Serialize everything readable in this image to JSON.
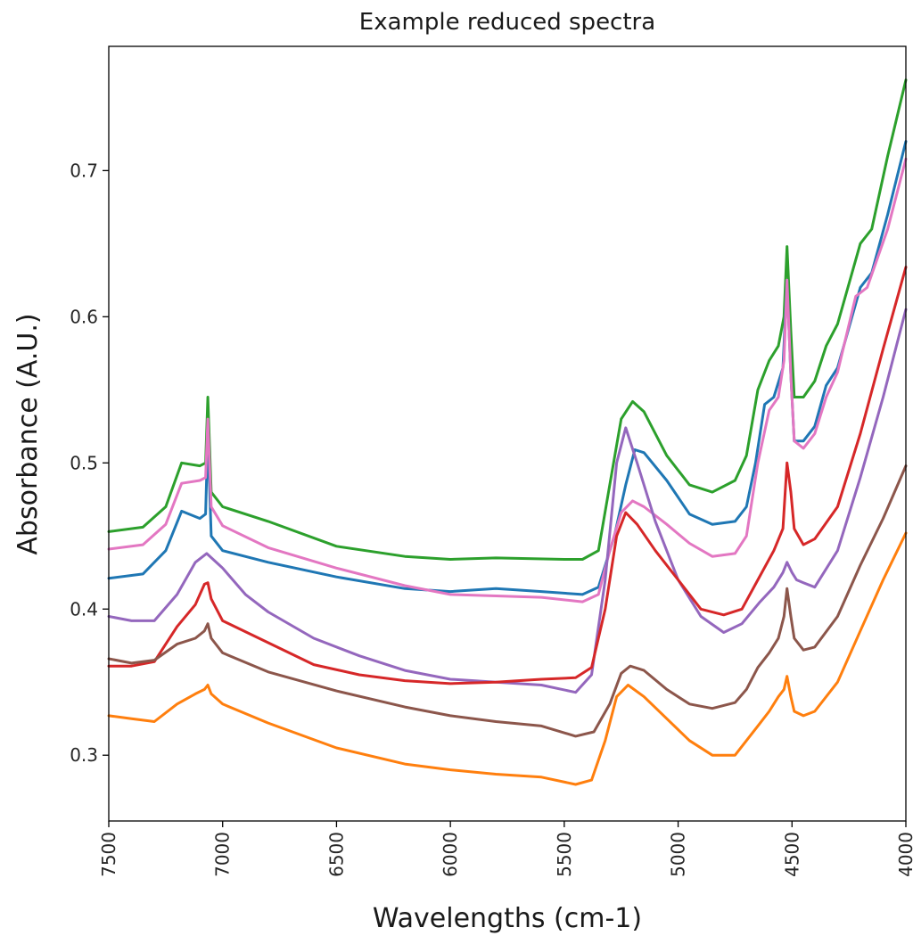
{
  "chart_data": {
    "type": "line",
    "title": "Example reduced spectra",
    "xlabel": "Wavelengths (cm-1)",
    "ylabel": "Absorbance (A.U.)",
    "xlim": [
      7500,
      4000
    ],
    "ylim": [
      0.255,
      0.785
    ],
    "x_inverted": true,
    "xticks": [
      7500,
      7000,
      6500,
      6000,
      5500,
      5000,
      4500,
      4000
    ],
    "yticks": [
      0.3,
      0.4,
      0.5,
      0.6,
      0.7
    ],
    "grid": false,
    "series": [
      {
        "color": "#2ca02c",
        "points": [
          [
            7500,
            0.453
          ],
          [
            7350,
            0.456
          ],
          [
            7250,
            0.47
          ],
          [
            7180,
            0.5
          ],
          [
            7100,
            0.498
          ],
          [
            7075,
            0.5
          ],
          [
            7065,
            0.545
          ],
          [
            7050,
            0.48
          ],
          [
            7000,
            0.47
          ],
          [
            6800,
            0.46
          ],
          [
            6500,
            0.443
          ],
          [
            6200,
            0.436
          ],
          [
            6000,
            0.434
          ],
          [
            5800,
            0.435
          ],
          [
            5500,
            0.434
          ],
          [
            5420,
            0.434
          ],
          [
            5350,
            0.44
          ],
          [
            5300,
            0.485
          ],
          [
            5250,
            0.53
          ],
          [
            5200,
            0.542
          ],
          [
            5150,
            0.535
          ],
          [
            5050,
            0.505
          ],
          [
            4950,
            0.485
          ],
          [
            4850,
            0.48
          ],
          [
            4750,
            0.488
          ],
          [
            4700,
            0.505
          ],
          [
            4650,
            0.55
          ],
          [
            4600,
            0.57
          ],
          [
            4560,
            0.58
          ],
          [
            4535,
            0.6
          ],
          [
            4522,
            0.648
          ],
          [
            4505,
            0.59
          ],
          [
            4490,
            0.545
          ],
          [
            4450,
            0.545
          ],
          [
            4400,
            0.556
          ],
          [
            4350,
            0.58
          ],
          [
            4300,
            0.595
          ],
          [
            4200,
            0.65
          ],
          [
            4150,
            0.66
          ],
          [
            4080,
            0.71
          ],
          [
            4000,
            0.762
          ]
        ]
      },
      {
        "color": "#1f77b4",
        "points": [
          [
            7500,
            0.421
          ],
          [
            7350,
            0.424
          ],
          [
            7250,
            0.44
          ],
          [
            7180,
            0.467
          ],
          [
            7100,
            0.462
          ],
          [
            7075,
            0.465
          ],
          [
            7065,
            0.52
          ],
          [
            7050,
            0.45
          ],
          [
            7000,
            0.44
          ],
          [
            6800,
            0.432
          ],
          [
            6500,
            0.422
          ],
          [
            6200,
            0.414
          ],
          [
            6000,
            0.412
          ],
          [
            5800,
            0.414
          ],
          [
            5600,
            0.412
          ],
          [
            5420,
            0.41
          ],
          [
            5350,
            0.415
          ],
          [
            5280,
            0.45
          ],
          [
            5230,
            0.485
          ],
          [
            5190,
            0.509
          ],
          [
            5150,
            0.507
          ],
          [
            5050,
            0.488
          ],
          [
            4950,
            0.465
          ],
          [
            4850,
            0.458
          ],
          [
            4750,
            0.46
          ],
          [
            4700,
            0.47
          ],
          [
            4660,
            0.5
          ],
          [
            4620,
            0.54
          ],
          [
            4580,
            0.545
          ],
          [
            4540,
            0.565
          ],
          [
            4522,
            0.625
          ],
          [
            4505,
            0.56
          ],
          [
            4490,
            0.515
          ],
          [
            4450,
            0.515
          ],
          [
            4400,
            0.525
          ],
          [
            4350,
            0.553
          ],
          [
            4300,
            0.565
          ],
          [
            4200,
            0.62
          ],
          [
            4150,
            0.63
          ],
          [
            4080,
            0.67
          ],
          [
            4000,
            0.72
          ]
        ]
      },
      {
        "color": "#e377c2",
        "points": [
          [
            7500,
            0.441
          ],
          [
            7350,
            0.444
          ],
          [
            7250,
            0.458
          ],
          [
            7180,
            0.486
          ],
          [
            7100,
            0.488
          ],
          [
            7075,
            0.49
          ],
          [
            7065,
            0.53
          ],
          [
            7050,
            0.47
          ],
          [
            7000,
            0.457
          ],
          [
            6800,
            0.442
          ],
          [
            6500,
            0.428
          ],
          [
            6200,
            0.416
          ],
          [
            6000,
            0.41
          ],
          [
            5800,
            0.409
          ],
          [
            5600,
            0.408
          ],
          [
            5420,
            0.405
          ],
          [
            5350,
            0.41
          ],
          [
            5300,
            0.44
          ],
          [
            5250,
            0.466
          ],
          [
            5200,
            0.474
          ],
          [
            5150,
            0.47
          ],
          [
            5050,
            0.458
          ],
          [
            4950,
            0.445
          ],
          [
            4850,
            0.436
          ],
          [
            4750,
            0.438
          ],
          [
            4700,
            0.45
          ],
          [
            4650,
            0.5
          ],
          [
            4600,
            0.536
          ],
          [
            4560,
            0.545
          ],
          [
            4535,
            0.57
          ],
          [
            4522,
            0.625
          ],
          [
            4505,
            0.56
          ],
          [
            4490,
            0.515
          ],
          [
            4450,
            0.51
          ],
          [
            4400,
            0.52
          ],
          [
            4350,
            0.545
          ],
          [
            4300,
            0.562
          ],
          [
            4220,
            0.614
          ],
          [
            4170,
            0.62
          ],
          [
            4080,
            0.66
          ],
          [
            4000,
            0.708
          ]
        ]
      },
      {
        "color": "#9467bd",
        "points": [
          [
            7500,
            0.395
          ],
          [
            7400,
            0.392
          ],
          [
            7300,
            0.392
          ],
          [
            7200,
            0.41
          ],
          [
            7120,
            0.432
          ],
          [
            7070,
            0.438
          ],
          [
            7000,
            0.428
          ],
          [
            6900,
            0.41
          ],
          [
            6800,
            0.398
          ],
          [
            6600,
            0.38
          ],
          [
            6400,
            0.368
          ],
          [
            6200,
            0.358
          ],
          [
            6000,
            0.352
          ],
          [
            5800,
            0.35
          ],
          [
            5600,
            0.348
          ],
          [
            5450,
            0.343
          ],
          [
            5380,
            0.355
          ],
          [
            5320,
            0.42
          ],
          [
            5270,
            0.5
          ],
          [
            5230,
            0.524
          ],
          [
            5180,
            0.5
          ],
          [
            5100,
            0.46
          ],
          [
            5000,
            0.42
          ],
          [
            4900,
            0.395
          ],
          [
            4800,
            0.384
          ],
          [
            4720,
            0.39
          ],
          [
            4640,
            0.405
          ],
          [
            4580,
            0.415
          ],
          [
            4540,
            0.425
          ],
          [
            4522,
            0.432
          ],
          [
            4500,
            0.425
          ],
          [
            4480,
            0.42
          ],
          [
            4450,
            0.418
          ],
          [
            4400,
            0.415
          ],
          [
            4300,
            0.44
          ],
          [
            4200,
            0.49
          ],
          [
            4100,
            0.545
          ],
          [
            4000,
            0.605
          ]
        ]
      },
      {
        "color": "#d62728",
        "points": [
          [
            7500,
            0.361
          ],
          [
            7400,
            0.361
          ],
          [
            7300,
            0.364
          ],
          [
            7200,
            0.388
          ],
          [
            7120,
            0.403
          ],
          [
            7080,
            0.417
          ],
          [
            7065,
            0.418
          ],
          [
            7050,
            0.407
          ],
          [
            7000,
            0.392
          ],
          [
            6800,
            0.377
          ],
          [
            6600,
            0.362
          ],
          [
            6400,
            0.355
          ],
          [
            6200,
            0.351
          ],
          [
            6000,
            0.349
          ],
          [
            5800,
            0.35
          ],
          [
            5600,
            0.352
          ],
          [
            5450,
            0.353
          ],
          [
            5380,
            0.36
          ],
          [
            5320,
            0.4
          ],
          [
            5270,
            0.45
          ],
          [
            5230,
            0.466
          ],
          [
            5180,
            0.458
          ],
          [
            5100,
            0.44
          ],
          [
            5000,
            0.42
          ],
          [
            4900,
            0.4
          ],
          [
            4800,
            0.396
          ],
          [
            4720,
            0.4
          ],
          [
            4650,
            0.42
          ],
          [
            4580,
            0.44
          ],
          [
            4540,
            0.455
          ],
          [
            4522,
            0.5
          ],
          [
            4505,
            0.48
          ],
          [
            4490,
            0.455
          ],
          [
            4450,
            0.444
          ],
          [
            4400,
            0.448
          ],
          [
            4300,
            0.47
          ],
          [
            4200,
            0.52
          ],
          [
            4100,
            0.578
          ],
          [
            4000,
            0.634
          ]
        ]
      },
      {
        "color": "#8c564b",
        "points": [
          [
            7500,
            0.366
          ],
          [
            7400,
            0.363
          ],
          [
            7300,
            0.365
          ],
          [
            7200,
            0.376
          ],
          [
            7120,
            0.38
          ],
          [
            7080,
            0.385
          ],
          [
            7065,
            0.39
          ],
          [
            7050,
            0.38
          ],
          [
            7000,
            0.37
          ],
          [
            6800,
            0.357
          ],
          [
            6500,
            0.344
          ],
          [
            6200,
            0.333
          ],
          [
            6000,
            0.327
          ],
          [
            5800,
            0.323
          ],
          [
            5600,
            0.32
          ],
          [
            5450,
            0.313
          ],
          [
            5370,
            0.316
          ],
          [
            5300,
            0.335
          ],
          [
            5250,
            0.356
          ],
          [
            5210,
            0.361
          ],
          [
            5150,
            0.358
          ],
          [
            5050,
            0.345
          ],
          [
            4950,
            0.335
          ],
          [
            4850,
            0.332
          ],
          [
            4750,
            0.336
          ],
          [
            4700,
            0.345
          ],
          [
            4650,
            0.36
          ],
          [
            4600,
            0.37
          ],
          [
            4560,
            0.38
          ],
          [
            4535,
            0.395
          ],
          [
            4522,
            0.414
          ],
          [
            4505,
            0.395
          ],
          [
            4490,
            0.38
          ],
          [
            4450,
            0.372
          ],
          [
            4400,
            0.374
          ],
          [
            4300,
            0.395
          ],
          [
            4200,
            0.43
          ],
          [
            4100,
            0.462
          ],
          [
            4000,
            0.498
          ]
        ]
      },
      {
        "color": "#ff7f0e",
        "points": [
          [
            7500,
            0.327
          ],
          [
            7400,
            0.325
          ],
          [
            7300,
            0.323
          ],
          [
            7200,
            0.335
          ],
          [
            7120,
            0.342
          ],
          [
            7080,
            0.345
          ],
          [
            7065,
            0.348
          ],
          [
            7050,
            0.342
          ],
          [
            7000,
            0.335
          ],
          [
            6800,
            0.322
          ],
          [
            6500,
            0.305
          ],
          [
            6200,
            0.294
          ],
          [
            6000,
            0.29
          ],
          [
            5800,
            0.287
          ],
          [
            5600,
            0.285
          ],
          [
            5450,
            0.28
          ],
          [
            5380,
            0.283
          ],
          [
            5320,
            0.31
          ],
          [
            5270,
            0.34
          ],
          [
            5220,
            0.348
          ],
          [
            5150,
            0.34
          ],
          [
            5050,
            0.325
          ],
          [
            4950,
            0.31
          ],
          [
            4850,
            0.3
          ],
          [
            4750,
            0.3
          ],
          [
            4700,
            0.31
          ],
          [
            4650,
            0.32
          ],
          [
            4600,
            0.33
          ],
          [
            4560,
            0.34
          ],
          [
            4535,
            0.345
          ],
          [
            4522,
            0.354
          ],
          [
            4505,
            0.34
          ],
          [
            4490,
            0.33
          ],
          [
            4450,
            0.327
          ],
          [
            4400,
            0.33
          ],
          [
            4300,
            0.35
          ],
          [
            4200,
            0.385
          ],
          [
            4100,
            0.42
          ],
          [
            4000,
            0.452
          ]
        ]
      }
    ]
  }
}
